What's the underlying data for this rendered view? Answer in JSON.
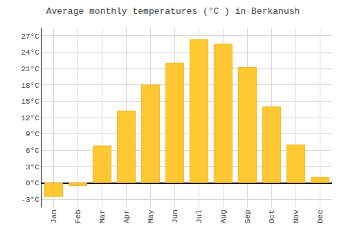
{
  "chart_data": {
    "type": "bar",
    "title": "Average monthly temperatures (°C ) in Berkanush",
    "categories": [
      "Jan",
      "Feb",
      "Mar",
      "Apr",
      "May",
      "Jun",
      "Jul",
      "Aug",
      "Sep",
      "Oct",
      "Nov",
      "Dec"
    ],
    "values": [
      -2.5,
      -0.5,
      6.8,
      13.2,
      18.0,
      22.0,
      26.3,
      25.5,
      21.2,
      14.0,
      7.0,
      1.0
    ],
    "color": "#FFC832",
    "ylim": [
      -4.5,
      28.5
    ],
    "yticks": [
      {
        "value": -3,
        "label": "-3°C"
      },
      {
        "value": 0,
        "label": "0°C"
      },
      {
        "value": 3,
        "label": "3°C"
      },
      {
        "value": 6,
        "label": "6°C"
      },
      {
        "value": 9,
        "label": "9°C"
      },
      {
        "value": 12,
        "label": "12°C"
      },
      {
        "value": 15,
        "label": "15°C"
      },
      {
        "value": 18,
        "label": "18°C"
      },
      {
        "value": 21,
        "label": "21°C"
      },
      {
        "value": 24,
        "label": "24°C"
      },
      {
        "value": 27,
        "label": "27°C"
      }
    ],
    "grid": true
  }
}
